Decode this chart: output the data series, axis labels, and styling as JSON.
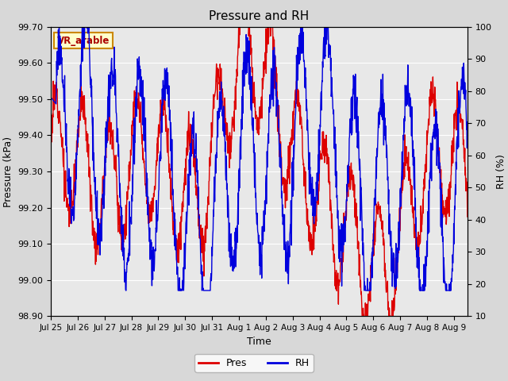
{
  "title": "Pressure and RH",
  "xlabel": "Time",
  "ylabel_left": "Pressure (kPa)",
  "ylabel_right": "RH (%)",
  "ylim_left": [
    98.9,
    99.7
  ],
  "ylim_right": [
    10,
    100
  ],
  "yticks_left": [
    98.9,
    99.0,
    99.1,
    99.2,
    99.3,
    99.4,
    99.5,
    99.6,
    99.7
  ],
  "yticks_right": [
    10,
    20,
    30,
    40,
    50,
    60,
    70,
    80,
    90,
    100
  ],
  "bg_color": "#d8d8d8",
  "plot_bg_color": "#e8e8e8",
  "legend_label_pres": "Pres",
  "legend_label_rh": "RH",
  "pres_color": "#dd0000",
  "rh_color": "#0000dd",
  "annotation_text": "VR_arable",
  "annotation_color": "#aa0000",
  "annotation_bg": "#ffffcc",
  "annotation_border": "#cc8800",
  "tick_labels": [
    "Jul 25",
    "Jul 26",
    "Jul 27",
    "Jul 28",
    "Jul 29",
    "Jul 30",
    "Jul 31",
    "Aug 1",
    "Aug 2",
    "Aug 3",
    "Aug 4",
    "Aug 5",
    "Aug 6",
    "Aug 7",
    "Aug 8",
    "Aug 9"
  ],
  "tick_positions": [
    0,
    1,
    2,
    3,
    4,
    5,
    6,
    7,
    8,
    9,
    10,
    11,
    12,
    13,
    14,
    15
  ],
  "figwidth": 6.4,
  "figheight": 4.8,
  "dpi": 100
}
